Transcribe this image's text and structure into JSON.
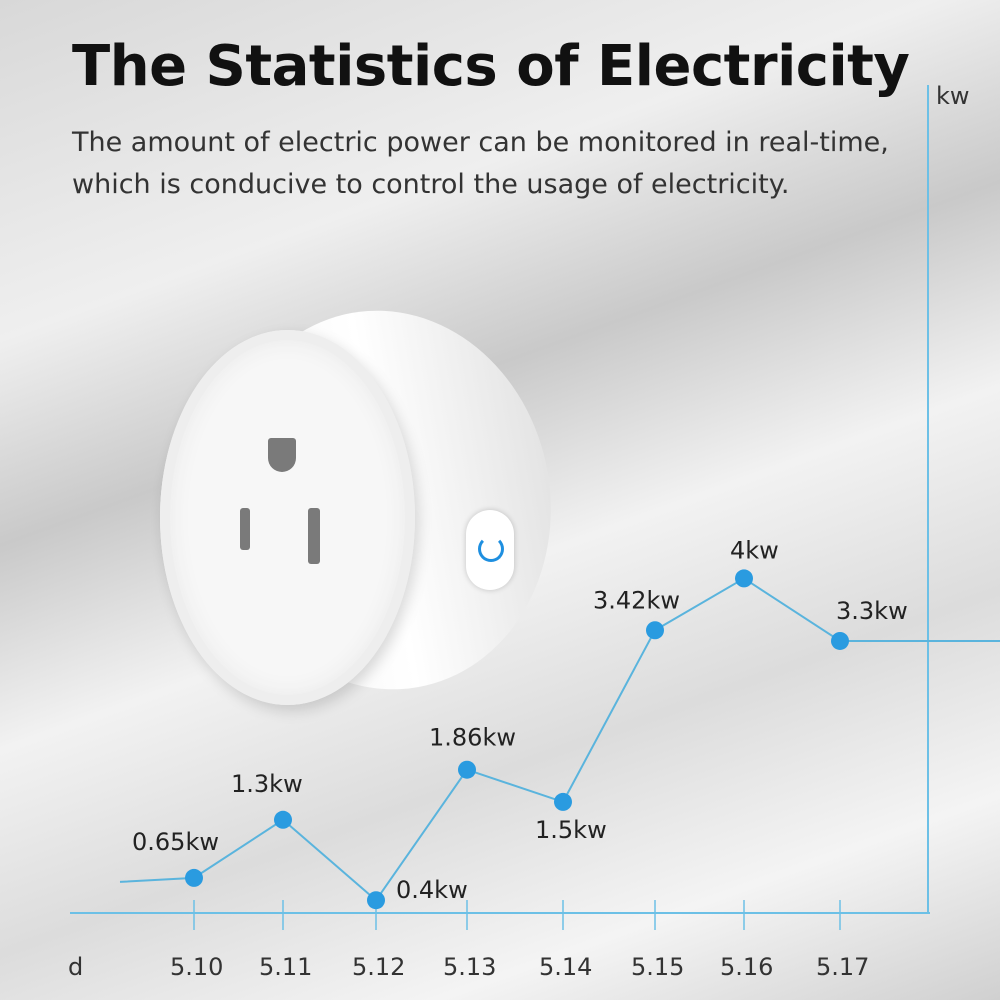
{
  "header": {
    "title": "The Statistics of Electricity",
    "subtitle": "The amount of electric power can be monitored in real-time, which is conducive to control the usage of electricity."
  },
  "chart_data": {
    "type": "line",
    "xlabel": "d",
    "ylabel": "kw",
    "categories": [
      "5.10",
      "5.11",
      "5.12",
      "5.13",
      "5.14",
      "5.15",
      "5.16",
      "5.17"
    ],
    "values": [
      0.65,
      1.3,
      0.4,
      1.86,
      1.5,
      3.42,
      4,
      3.3
    ],
    "data_labels": [
      "0.65kw",
      "1.3kw",
      "0.4kw",
      "1.86kw",
      "1.5kw",
      "3.42kw",
      "4kw",
      "3.3kw"
    ],
    "grid": false,
    "line_color": "#5ab4dd",
    "marker_color": "#2a9be0",
    "axis_color": "#6cc0e6"
  }
}
